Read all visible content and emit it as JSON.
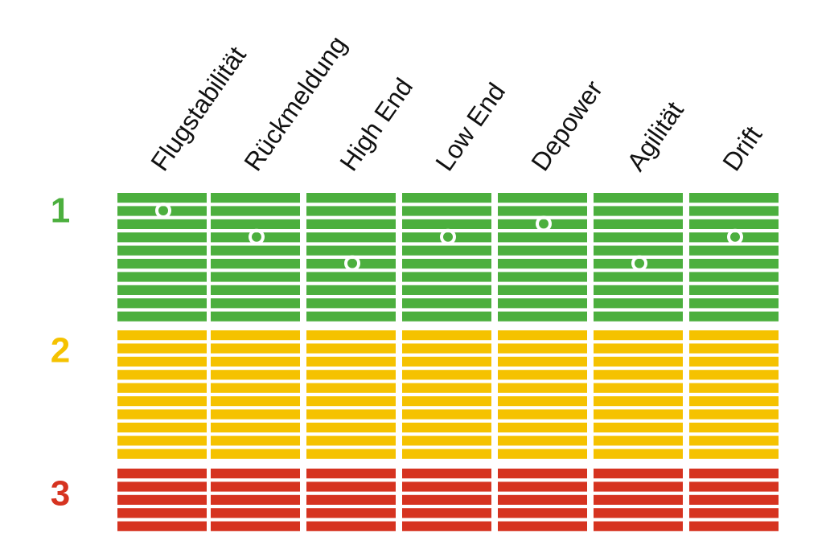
{
  "chart_data": {
    "type": "heatmap",
    "columns": [
      "Flugstabilität",
      "Rückmeldung",
      "High End",
      "Low End",
      "Depower",
      "Agilität",
      "Drift"
    ],
    "zones": [
      {
        "label": "1",
        "color": "#4caf3e",
        "rows": 10
      },
      {
        "label": "2",
        "color": "#f5c200",
        "rows": 10
      },
      {
        "label": "3",
        "color": "#d63320",
        "rows": 5
      }
    ],
    "markers": [
      {
        "column": "Flugstabilität",
        "zone": "1",
        "row": 2
      },
      {
        "column": "Rückmeldung",
        "zone": "1",
        "row": 4
      },
      {
        "column": "High End",
        "zone": "1",
        "row": 6
      },
      {
        "column": "Low End",
        "zone": "1",
        "row": 4
      },
      {
        "column": "Depower",
        "zone": "1",
        "row": 3
      },
      {
        "column": "Agilität",
        "zone": "1",
        "row": 6
      },
      {
        "column": "Drift",
        "zone": "1",
        "row": 4
      }
    ]
  }
}
